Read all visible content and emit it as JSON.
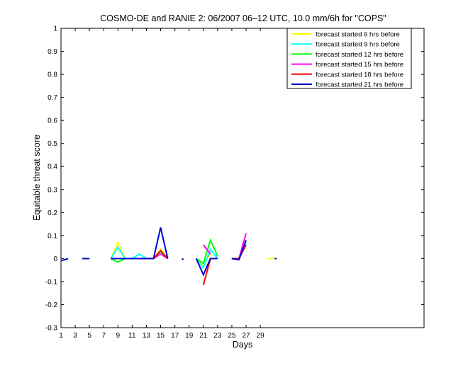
{
  "chart_data": {
    "type": "line",
    "title": "COSMO-DE and RANIE 2: 06/2007 06–12 UTC, 10.0 mm/6h for \"COPS\"",
    "xlabel": "Days",
    "ylabel": "Equitable threat score",
    "xlim": [
      1,
      52
    ],
    "ylim": [
      -0.3,
      1
    ],
    "xticks": [
      "1",
      "3",
      "5",
      "7",
      "9",
      "11",
      "13",
      "15",
      "17",
      "19",
      "21",
      "23",
      "25",
      "27",
      "29"
    ],
    "yticks": [
      "-0.3",
      "-0.2",
      "-0.1",
      "0",
      "0.1",
      "0.2",
      "0.3",
      "0.4",
      "0.5",
      "0.6",
      "0.7",
      "0.8",
      "0.9",
      "1"
    ],
    "grid": false,
    "legend_position": "top-right",
    "series": [
      {
        "name": "forecast started 6 hrs before",
        "color": "#ffff00",
        "segments": [
          [
            [
              1,
              -0.01
            ],
            [
              2,
              0
            ]
          ],
          [
            [
              4,
              0
            ],
            [
              5,
              0
            ]
          ],
          [
            [
              8,
              0
            ],
            [
              9,
              0.07
            ],
            [
              10,
              0
            ]
          ],
          [
            [
              12,
              0
            ],
            [
              13,
              0
            ]
          ],
          [
            [
              14,
              0
            ],
            [
              15,
              0.04
            ],
            [
              16,
              0
            ]
          ],
          [
            [
              20,
              0
            ],
            [
              21,
              -0.03
            ],
            [
              22,
              0.02
            ]
          ],
          [
            [
              25,
              0
            ],
            [
              26,
              0
            ],
            [
              27,
              0.08
            ]
          ],
          [
            [
              30,
              0
            ],
            [
              31,
              0
            ]
          ]
        ]
      },
      {
        "name": "forecast started 9 hrs before",
        "color": "#00ffff",
        "segments": [
          [
            [
              1,
              -0.01
            ],
            [
              2,
              0
            ]
          ],
          [
            [
              4,
              0
            ],
            [
              5,
              0
            ]
          ],
          [
            [
              8,
              0
            ],
            [
              9,
              0.05
            ],
            [
              10,
              0
            ],
            [
              11,
              0
            ],
            [
              12,
              0.02
            ],
            [
              13,
              0
            ],
            [
              14,
              0
            ],
            [
              15,
              0.02
            ],
            [
              16,
              0
            ]
          ],
          [
            [
              20,
              0
            ],
            [
              21,
              -0.04
            ],
            [
              22,
              0.04
            ],
            [
              23,
              0
            ]
          ],
          [
            [
              25,
              0
            ],
            [
              26,
              0
            ],
            [
              27,
              0.07
            ]
          ]
        ]
      },
      {
        "name": "forecast started 12 hrs before",
        "color": "#00ff00",
        "segments": [
          [
            [
              8,
              0
            ],
            [
              9,
              -0.015
            ],
            [
              10,
              0
            ]
          ],
          [
            [
              14,
              0
            ],
            [
              15,
              0.03
            ],
            [
              16,
              0
            ]
          ],
          [
            [
              20,
              0
            ],
            [
              21,
              -0.02
            ],
            [
              22,
              0.08
            ],
            [
              23,
              0.01
            ]
          ],
          [
            [
              25,
              0
            ],
            [
              26,
              0
            ],
            [
              27,
              0.06
            ]
          ]
        ]
      },
      {
        "name": "forecast started 15 hrs before",
        "color": "#ff00ff",
        "segments": [
          [
            [
              14,
              0
            ],
            [
              15,
              0.02
            ],
            [
              16,
              0
            ]
          ],
          [
            [
              21,
              0.06
            ],
            [
              22,
              0.02
            ]
          ],
          [
            [
              25,
              0
            ],
            [
              26,
              0
            ],
            [
              27,
              0.11
            ]
          ]
        ]
      },
      {
        "name": "forecast started 18 hrs before",
        "color": "#ff0000",
        "segments": [
          [
            [
              12,
              0
            ],
            [
              13,
              0
            ]
          ],
          [
            [
              14,
              0
            ],
            [
              15,
              0.035
            ],
            [
              16,
              0
            ]
          ],
          [
            [
              21,
              -0.115
            ],
            [
              22,
              0
            ]
          ],
          [
            [
              25,
              0
            ],
            [
              26,
              0
            ],
            [
              27,
              0.06
            ]
          ]
        ]
      },
      {
        "name": "forecast started 21 hrs before",
        "color": "#0000cc",
        "segments": [
          [
            [
              1,
              -0.01
            ],
            [
              2,
              0
            ]
          ],
          [
            [
              4,
              0
            ],
            [
              5,
              0
            ]
          ],
          [
            [
              8,
              0
            ],
            [
              9,
              0
            ],
            [
              10,
              0
            ],
            [
              11,
              0
            ],
            [
              12,
              0
            ],
            [
              13,
              0
            ],
            [
              14,
              0
            ],
            [
              15,
              0.135
            ],
            [
              16,
              0
            ]
          ],
          [
            [
              18,
              0
            ],
            [
              18.2,
              -0.005
            ]
          ],
          [
            [
              20,
              0
            ],
            [
              21,
              -0.07
            ],
            [
              22,
              0
            ],
            [
              23,
              0
            ]
          ],
          [
            [
              25,
              0
            ],
            [
              26,
              -0.005
            ],
            [
              27,
              0.08
            ]
          ],
          [
            [
              31,
              0
            ],
            [
              31.3,
              0
            ]
          ]
        ]
      }
    ]
  }
}
